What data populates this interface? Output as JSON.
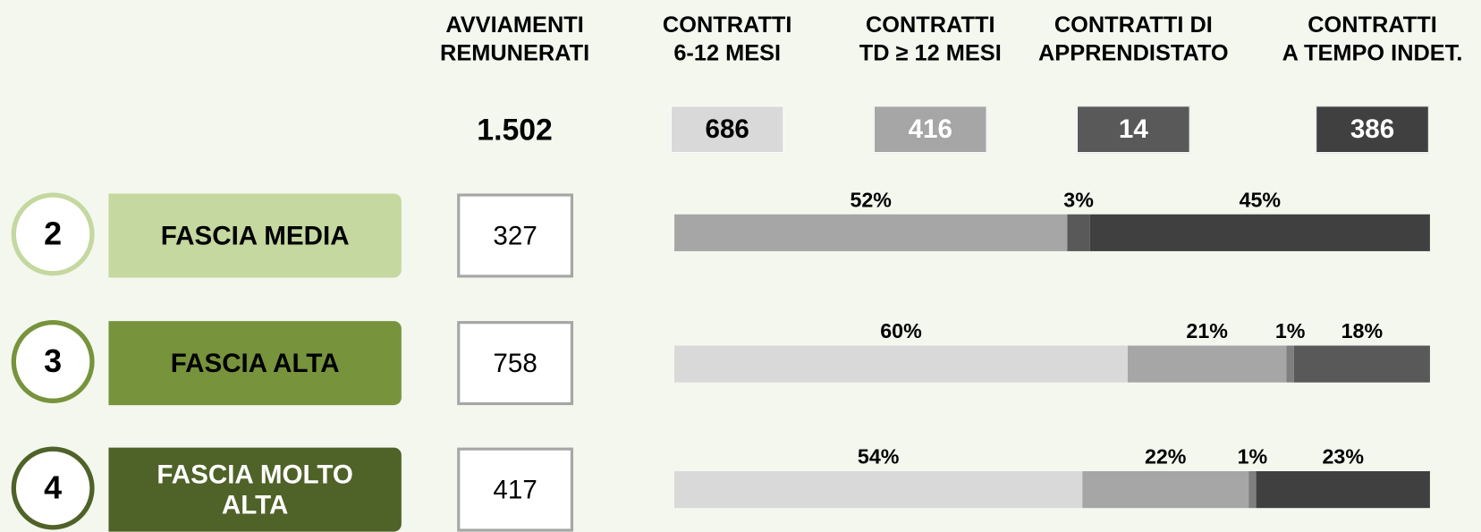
{
  "columns": [
    {
      "header": [
        "AVVIAMENTI",
        "REMUNERATI"
      ],
      "total": "1.502"
    },
    {
      "header": [
        "CONTRATTI",
        "6-12 MESI"
      ],
      "total": "686",
      "color": "#d9d9d9",
      "text_color": "#000000"
    },
    {
      "header": [
        "CONTRATTI",
        "TD ≥ 12 MESI"
      ],
      "total": "416",
      "color": "#a6a6a6",
      "text_color": "#ffffff"
    },
    {
      "header": [
        "CONTRATTI DI",
        "APPRENDISTATO"
      ],
      "total": "14",
      "color": "#595959",
      "text_color": "#ffffff"
    },
    {
      "header": [
        "CONTRATTI",
        "A TEMPO INDET."
      ],
      "total": "386",
      "color": "#404040",
      "text_color": "#ffffff"
    }
  ],
  "rows": [
    {
      "number": "2",
      "label": [
        "FASCIA MEDIA"
      ],
      "count": "327",
      "badge_color": "#c4d89f",
      "label_color": "#000000",
      "values": [
        null,
        52,
        3,
        45
      ],
      "value_labels": [
        null,
        "52%",
        "3%",
        "45%"
      ],
      "colors": [
        "#d9d9d9",
        "#a6a6a6",
        "#595959",
        "#404040"
      ]
    },
    {
      "number": "3",
      "label": [
        "FASCIA ALTA"
      ],
      "count": "758",
      "badge_color": "#77933c",
      "label_color": "#000000",
      "values": [
        60,
        21,
        1,
        18
      ],
      "value_labels": [
        "60%",
        "21%",
        "1%",
        "18%"
      ],
      "colors": [
        "#d9d9d9",
        "#a6a6a6",
        "#7f7f7f",
        "#595959"
      ]
    },
    {
      "number": "4",
      "label": [
        "FASCIA MOLTO",
        "ALTA"
      ],
      "count": "417",
      "badge_color": "#4f6228",
      "label_color": "#ffffff",
      "values": [
        54,
        22,
        1,
        23
      ],
      "value_labels": [
        "54%",
        "22%",
        "1%",
        "23%"
      ],
      "colors": [
        "#d9d9d9",
        "#a6a6a6",
        "#7f7f7f",
        "#404040"
      ]
    }
  ]
}
